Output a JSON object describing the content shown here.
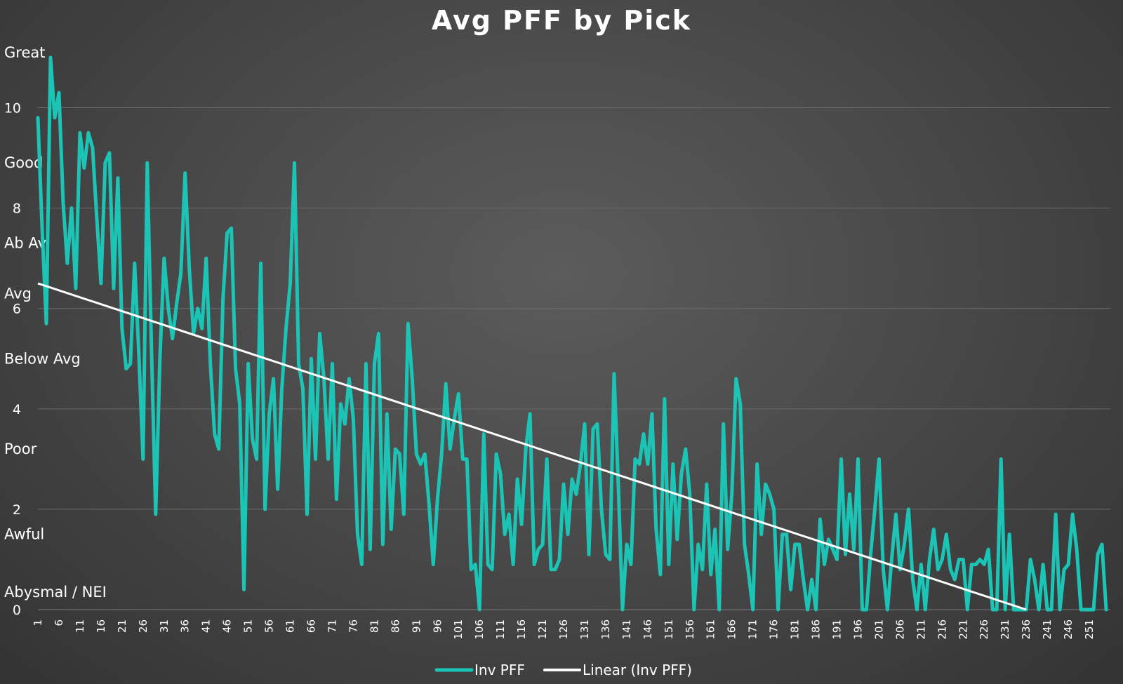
{
  "chart_data": {
    "type": "line",
    "title": "Avg PFF by Pick",
    "xlabel": "",
    "ylabel": "",
    "xlim": [
      1,
      256
    ],
    "ylim": [
      0,
      11
    ],
    "y_ticks": [
      0,
      2,
      4,
      6,
      8,
      10
    ],
    "x_tick_step": 5,
    "grid": true,
    "legend_position": "bottom",
    "colors": {
      "series": "#1cc4b6",
      "trend": "#ffffff",
      "grid": "#6a6a6a"
    },
    "rating_bands": [
      {
        "label": "Great",
        "y": 11.1
      },
      {
        "label": "Good",
        "y": 8.9
      },
      {
        "label": "Ab Av",
        "y": 7.3
      },
      {
        "label": "Avg",
        "y": 6.3
      },
      {
        "label": "Below Avg",
        "y": 5.0
      },
      {
        "label": "Poor",
        "y": 3.2
      },
      {
        "label": "Awful",
        "y": 1.5
      },
      {
        "label": "Abysmal / NEI",
        "y": 0.35
      }
    ],
    "series": [
      {
        "name": "Inv PFF",
        "style": "line",
        "values": [
          9.8,
          7.6,
          5.7,
          11.0,
          9.8,
          10.3,
          8.1,
          6.9,
          8.0,
          6.4,
          9.5,
          8.8,
          9.5,
          9.2,
          7.8,
          6.5,
          8.9,
          9.1,
          6.4,
          8.6,
          5.6,
          4.8,
          4.9,
          6.9,
          5.1,
          3.0,
          8.9,
          5.2,
          1.9,
          5.0,
          7.0,
          6.0,
          5.4,
          6.1,
          6.7,
          8.7,
          6.8,
          5.5,
          6.0,
          5.6,
          7.0,
          4.9,
          3.5,
          3.2,
          6.2,
          7.5,
          7.6,
          4.8,
          4.1,
          0.4,
          4.9,
          3.4,
          3.0,
          6.9,
          2.0,
          3.9,
          4.6,
          2.4,
          4.4,
          5.6,
          6.5,
          8.9,
          4.9,
          4.4,
          1.9,
          5.0,
          3.0,
          5.5,
          4.6,
          3.0,
          4.9,
          2.2,
          4.1,
          3.7,
          4.6,
          3.8,
          1.5,
          0.9,
          4.9,
          1.2,
          4.9,
          5.5,
          1.3,
          3.9,
          1.6,
          3.2,
          3.1,
          1.9,
          5.7,
          4.6,
          3.1,
          2.9,
          3.1,
          2.1,
          0.9,
          2.2,
          3.1,
          4.5,
          3.2,
          3.8,
          4.3,
          3.0,
          3.0,
          0.8,
          0.9,
          0.0,
          3.5,
          0.9,
          0.8,
          3.1,
          2.7,
          1.5,
          1.9,
          0.9,
          2.6,
          1.7,
          3.2,
          3.9,
          0.9,
          1.2,
          1.3,
          3.0,
          0.8,
          0.8,
          1.0,
          2.5,
          1.5,
          2.6,
          2.3,
          2.9,
          3.7,
          1.1,
          3.6,
          3.7,
          2.0,
          1.1,
          1.0,
          4.7,
          2.5,
          0.0,
          1.3,
          0.9,
          3.0,
          2.9,
          3.5,
          2.9,
          3.9,
          1.6,
          0.7,
          4.2,
          0.9,
          2.9,
          1.4,
          2.7,
          3.2,
          2.3,
          0.0,
          1.3,
          0.8,
          2.5,
          0.7,
          1.6,
          0.0,
          3.7,
          1.2,
          2.3,
          4.6,
          4.1,
          1.3,
          0.7,
          0.0,
          2.9,
          1.5,
          2.5,
          2.3,
          2.0,
          0.0,
          1.5,
          1.5,
          0.4,
          1.3,
          1.3,
          0.6,
          0.0,
          0.6,
          0.0,
          1.8,
          0.9,
          1.4,
          1.2,
          1.0,
          3.0,
          1.1,
          2.3,
          1.2,
          3.0,
          0.0,
          0.0,
          1.1,
          2.0,
          3.0,
          0.8,
          0.0,
          1.0,
          1.9,
          0.8,
          1.3,
          2.0,
          0.6,
          0.0,
          0.9,
          0.0,
          1.0,
          1.6,
          0.8,
          1.0,
          1.5,
          0.8,
          0.6,
          1.0,
          1.0,
          0.0,
          0.9,
          0.9,
          1.0,
          0.9,
          1.2,
          0.0,
          0.0,
          3.0,
          0.0,
          1.5,
          0.0,
          0.0,
          0.0,
          0.0,
          1.0,
          0.6,
          0.0,
          0.9,
          0.0,
          0.0,
          1.9,
          0.0,
          0.8,
          0.9,
          1.9,
          1.2,
          0.0,
          0.0,
          0.0,
          0.0,
          1.1,
          1.3,
          0.0
        ]
      },
      {
        "name": "Linear (Inv PFF)",
        "style": "trend",
        "x": [
          1,
          236
        ],
        "values": [
          6.5,
          0.0
        ]
      }
    ]
  }
}
